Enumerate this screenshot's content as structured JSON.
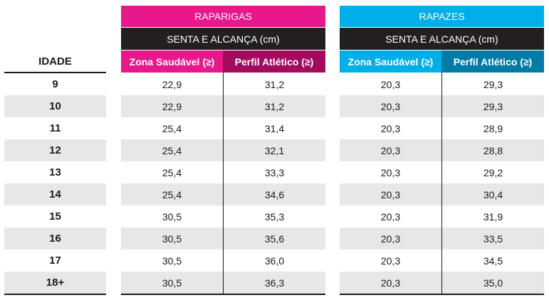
{
  "idade_header": "IDADE",
  "girls": {
    "title": "RAPARIGAS",
    "subtitle": "SENTA E ALCANÇA (cm)",
    "col1": "Zona Saudável (≥)",
    "col2": "Perfil Atlético (≥)"
  },
  "boys": {
    "title": "RAPAZES",
    "subtitle": "SENTA E ALCANÇA (cm)",
    "col1": "Zona Saudável (≥)",
    "col2": "Perfil Atlético (≥)"
  },
  "rows": [
    {
      "age": "9",
      "g_zona": "22,9",
      "g_perfil": "31,2",
      "b_zona": "20,3",
      "b_perfil": "29,3"
    },
    {
      "age": "10",
      "g_zona": "22,9",
      "g_perfil": "31,2",
      "b_zona": "20,3",
      "b_perfil": "29,3"
    },
    {
      "age": "11",
      "g_zona": "25,4",
      "g_perfil": "31,4",
      "b_zona": "20,3",
      "b_perfil": "28,9"
    },
    {
      "age": "12",
      "g_zona": "25,4",
      "g_perfil": "32,1",
      "b_zona": "20,3",
      "b_perfil": "28,8"
    },
    {
      "age": "13",
      "g_zona": "25,4",
      "g_perfil": "33,3",
      "b_zona": "20,3",
      "b_perfil": "29,2"
    },
    {
      "age": "14",
      "g_zona": "25,4",
      "g_perfil": "34,6",
      "b_zona": "20,3",
      "b_perfil": "30,4"
    },
    {
      "age": "15",
      "g_zona": "30,5",
      "g_perfil": "35,3",
      "b_zona": "20,3",
      "b_perfil": "31,9"
    },
    {
      "age": "16",
      "g_zona": "30,5",
      "g_perfil": "35,6",
      "b_zona": "20,3",
      "b_perfil": "33,5"
    },
    {
      "age": "17",
      "g_zona": "30,5",
      "g_perfil": "36,0",
      "b_zona": "20,3",
      "b_perfil": "34,5"
    },
    {
      "age": "18+",
      "g_zona": "30,5",
      "g_perfil": "36,3",
      "b_zona": "20,3",
      "b_perfil": "35,0"
    }
  ],
  "colors": {
    "girls_accent": "#e8178a",
    "girls_dark": "#a30b5e",
    "boys_accent": "#00aee8",
    "boys_dark": "#007aa6",
    "subheader_bg": "#231f20",
    "row_shade": "#e6e7e8"
  }
}
